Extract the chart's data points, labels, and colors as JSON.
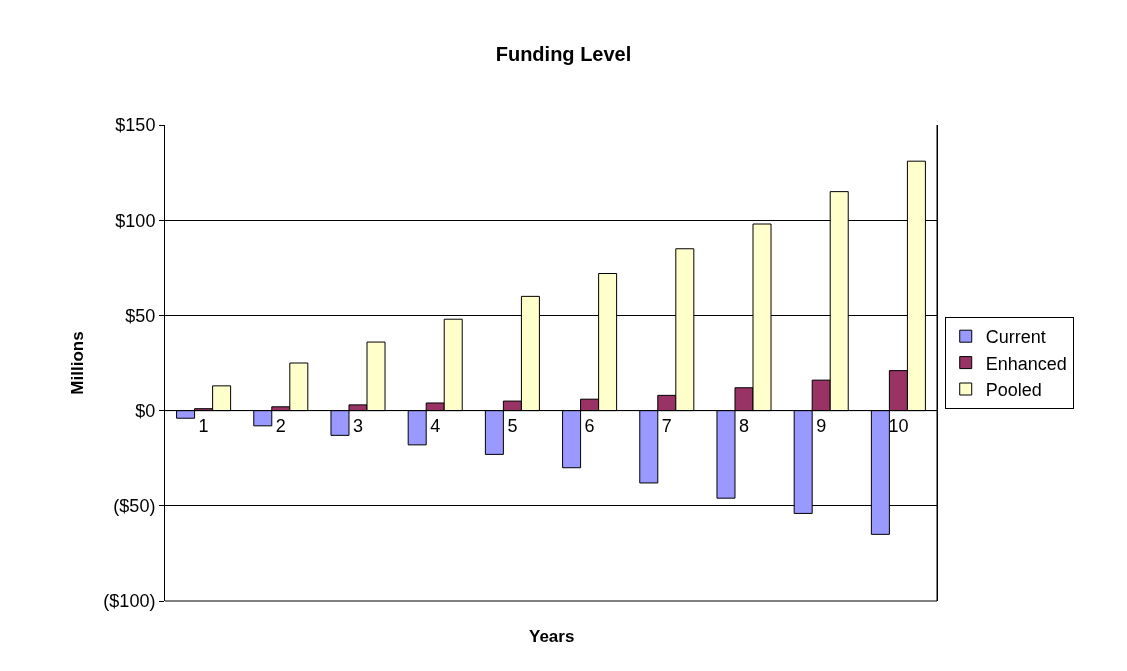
{
  "chart_data": {
    "type": "bar",
    "title": "Funding Level",
    "xlabel": "Years",
    "ylabel": "Millions",
    "categories": [
      "1",
      "2",
      "3",
      "4",
      "5",
      "6",
      "7",
      "8",
      "9",
      "10"
    ],
    "series": [
      {
        "name": "Current",
        "color": "#9999ff",
        "values": [
          -4,
          -8,
          -13,
          -18,
          -23,
          -30,
          -38,
          -46,
          -54,
          -65
        ]
      },
      {
        "name": "Enhanced",
        "color": "#993366",
        "values": [
          1,
          2,
          3,
          4,
          5,
          6,
          8,
          12,
          16,
          21
        ]
      },
      {
        "name": "Pooled",
        "color": "#ffffcc",
        "values": [
          13,
          25,
          36,
          48,
          60,
          72,
          85,
          98,
          115,
          131
        ]
      }
    ],
    "ylim": [
      -100,
      150
    ],
    "yticks": [
      {
        "value": -100,
        "label": "($100)"
      },
      {
        "value": -50,
        "label": "($50)"
      },
      {
        "value": 0,
        "label": "$0"
      },
      {
        "value": 50,
        "label": "$50"
      },
      {
        "value": 100,
        "label": "$100"
      },
      {
        "value": 150,
        "label": "$150"
      }
    ],
    "grid": "y",
    "legend": "right"
  }
}
